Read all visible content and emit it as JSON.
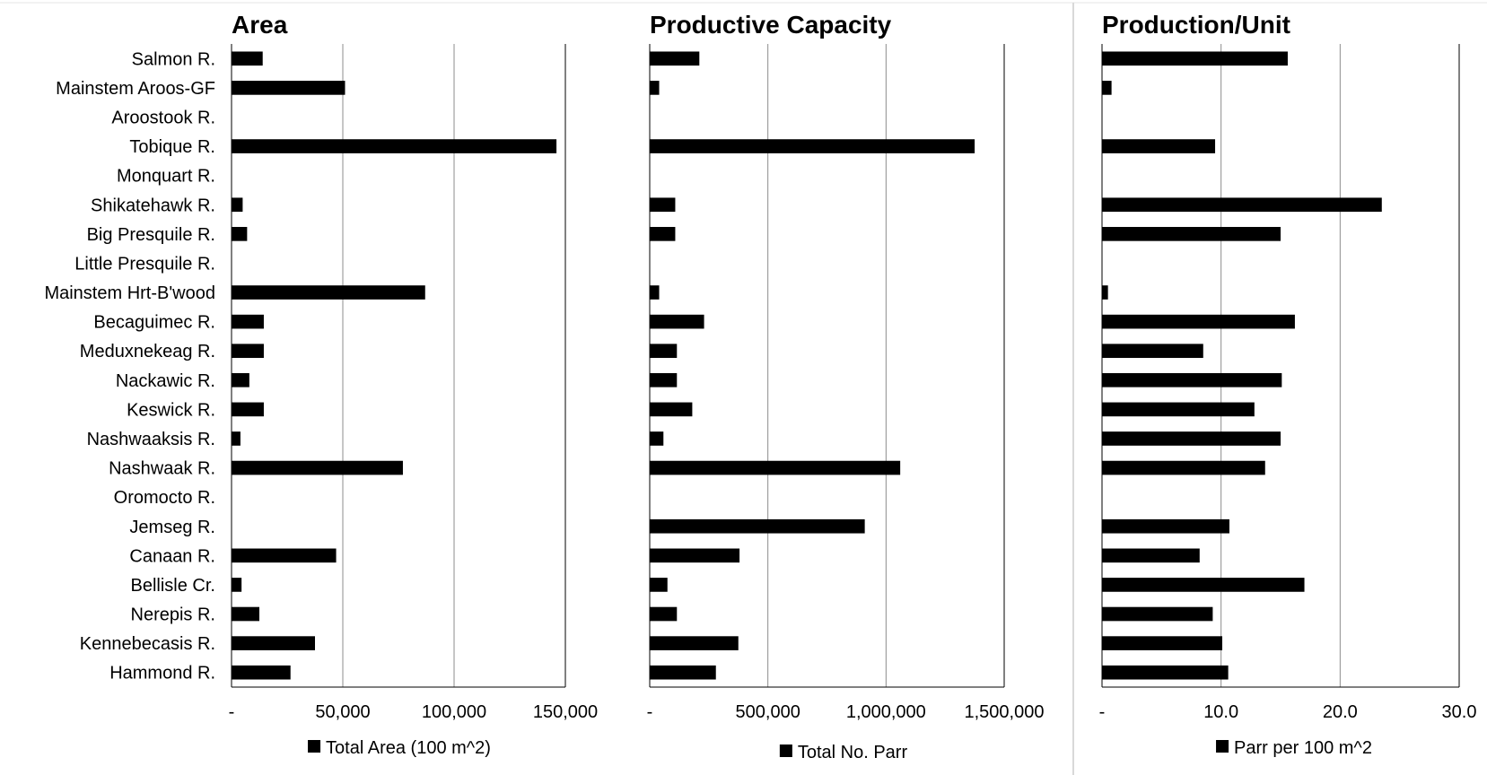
{
  "chart_data": [
    {
      "type": "bar",
      "orientation": "horizontal",
      "title": "Area",
      "categories": [
        "Salmon R.",
        "Mainstem Aroos-GF",
        "Aroostook R.",
        "Tobique R.",
        "Monquart R.",
        "Shikatehawk R.",
        "Big Presquile R.",
        "Little Presquile R.",
        "Mainstem Hrt-B'wood",
        "Becaguimec R.",
        "Meduxnekeag R.",
        "Nackawic R.",
        "Keswick R.",
        "Nashwaaksis R.",
        "Nashwaak R.",
        "Oromocto R.",
        "Jemseg R.",
        "Canaan R.",
        "Bellisle Cr.",
        "Nerepis R.",
        "Kennebecasis R.",
        "Hammond R."
      ],
      "series": [
        {
          "name": "Total Area (100 m^2)",
          "values": [
            14000,
            51000,
            0,
            146000,
            0,
            5000,
            7000,
            0,
            87000,
            14500,
            14500,
            8000,
            14500,
            4000,
            77000,
            0,
            0,
            47000,
            4500,
            12500,
            37500,
            26500
          ]
        }
      ],
      "xlim": [
        0,
        150000
      ],
      "xticks": [
        0,
        50000,
        100000,
        150000
      ],
      "xtick_labels": [
        "-",
        "50,000",
        "100,000",
        "150,000"
      ],
      "color": "#000000",
      "grid": true,
      "legend": "bottom"
    },
    {
      "type": "bar",
      "orientation": "horizontal",
      "title": "Productive Capacity",
      "categories": [
        "Salmon R.",
        "Mainstem Aroos-GF",
        "Aroostook R.",
        "Tobique R.",
        "Monquart R.",
        "Shikatehawk R.",
        "Big Presquile R.",
        "Little Presquile R.",
        "Mainstem Hrt-B'wood",
        "Becaguimec R.",
        "Meduxnekeag R.",
        "Nackawic R.",
        "Keswick R.",
        "Nashwaaksis R.",
        "Nashwaak R.",
        "Oromocto R.",
        "Jemseg R.",
        "Canaan R.",
        "Bellisle Cr.",
        "Nerepis R.",
        "Kennebecasis R.",
        "Hammond R."
      ],
      "series": [
        {
          "name": "Total No. Parr",
          "values": [
            210000,
            40000,
            0,
            1375000,
            0,
            108000,
            108000,
            0,
            40000,
            230000,
            115000,
            115000,
            180000,
            58000,
            1060000,
            0,
            910000,
            380000,
            75000,
            115000,
            375000,
            280000
          ]
        }
      ],
      "xlim": [
        0,
        1500000
      ],
      "xticks": [
        0,
        500000,
        1000000,
        1500000
      ],
      "xtick_labels": [
        "-",
        "500,000",
        "1,000,000",
        "1,500,000"
      ],
      "color": "#000000",
      "grid": true,
      "legend": "bottom"
    },
    {
      "type": "bar",
      "orientation": "horizontal",
      "title": "Production/Unit",
      "categories": [
        "Salmon R.",
        "Mainstem Aroos-GF",
        "Aroostook R.",
        "Tobique R.",
        "Monquart R.",
        "Shikatehawk R.",
        "Big Presquile R.",
        "Little Presquile R.",
        "Mainstem Hrt-B'wood",
        "Becaguimec R.",
        "Meduxnekeag R.",
        "Nackawic R.",
        "Keswick R.",
        "Nashwaaksis R.",
        "Nashwaak R.",
        "Oromocto R.",
        "Jemseg R.",
        "Canaan R.",
        "Bellisle Cr.",
        "Nerepis R.",
        "Kennebecasis R.",
        "Hammond R."
      ],
      "series": [
        {
          "name": "Parr per 100 m^2",
          "values": [
            15.6,
            0.8,
            0,
            9.5,
            0,
            23.5,
            15.0,
            0,
            0.5,
            16.2,
            8.5,
            15.1,
            12.8,
            15.0,
            13.7,
            0,
            10.7,
            8.2,
            17.0,
            9.3,
            10.1,
            10.6
          ]
        }
      ],
      "xlim": [
        0,
        30
      ],
      "xticks": [
        0,
        10,
        20,
        30
      ],
      "xtick_labels": [
        "-",
        "10.0",
        "20.0",
        "30.0"
      ],
      "color": "#000000",
      "grid": true,
      "legend": "bottom"
    }
  ]
}
